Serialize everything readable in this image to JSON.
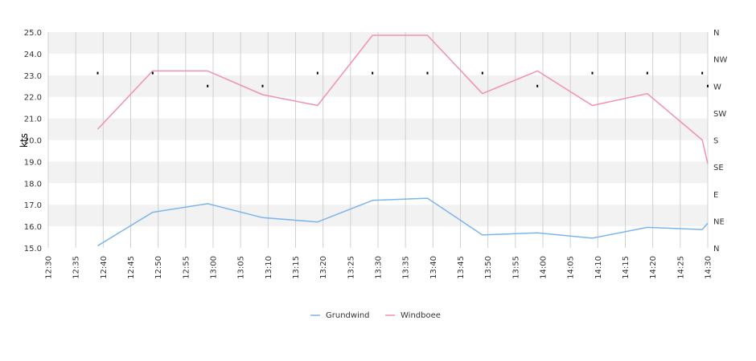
{
  "chart_data": {
    "type": "line",
    "ylabel": "kts",
    "ylim": [
      15,
      25
    ],
    "y_ticks": [
      "15.0",
      "16.0",
      "17.0",
      "18.0",
      "19.0",
      "20.0",
      "21.0",
      "22.0",
      "23.0",
      "24.0",
      "25.0"
    ],
    "x_ticks": [
      "12:30",
      "12:35",
      "12:40",
      "12:45",
      "12:50",
      "12:55",
      "13:00",
      "13:05",
      "13:10",
      "13:15",
      "13:20",
      "13:25",
      "13:30",
      "13:35",
      "13:40",
      "13:45",
      "13:50",
      "13:55",
      "14:00",
      "14:05",
      "14:10",
      "14:15",
      "14:20",
      "14:25",
      "14:30"
    ],
    "y2_ticks": [
      "N",
      "NE",
      "E",
      "SE",
      "S",
      "SW",
      "W",
      "NW",
      "N"
    ],
    "series": [
      {
        "name": "Grundwind",
        "color": "#7cb5ec",
        "points": [
          [
            "12:39",
            15.1
          ],
          [
            "12:49",
            16.65
          ],
          [
            "12:59",
            17.05
          ],
          [
            "13:09",
            16.4
          ],
          [
            "13:19",
            16.2
          ],
          [
            "13:29",
            17.2
          ],
          [
            "13:39",
            17.3
          ],
          [
            "13:49",
            15.6
          ],
          [
            "13:59",
            15.7
          ],
          [
            "14:09",
            15.45
          ],
          [
            "14:19",
            15.95
          ],
          [
            "14:29",
            15.85
          ],
          [
            "14:30",
            16.15
          ]
        ]
      },
      {
        "name": "Windboee",
        "color": "#f28fb8",
        "points": [
          [
            "12:39",
            20.5
          ],
          [
            "12:49",
            23.2
          ],
          [
            "12:59",
            23.2
          ],
          [
            "13:09",
            22.1
          ],
          [
            "13:19",
            21.6
          ],
          [
            "13:29",
            24.85
          ],
          [
            "13:39",
            24.85
          ],
          [
            "13:49",
            22.15
          ],
          [
            "13:59",
            23.2
          ],
          [
            "14:09",
            21.6
          ],
          [
            "14:19",
            22.15
          ],
          [
            "14:29",
            20.0
          ],
          [
            "14:30",
            18.9
          ]
        ]
      }
    ],
    "direction_markers": [
      [
        "12:39",
        23.1
      ],
      [
        "12:49",
        23.1
      ],
      [
        "12:59",
        22.5
      ],
      [
        "13:09",
        22.5
      ],
      [
        "13:19",
        23.1
      ],
      [
        "13:29",
        23.1
      ],
      [
        "13:39",
        23.1
      ],
      [
        "13:49",
        23.1
      ],
      [
        "13:59",
        22.5
      ],
      [
        "14:09",
        23.1
      ],
      [
        "14:19",
        23.1
      ],
      [
        "14:29",
        23.1
      ],
      [
        "14:30",
        22.5
      ]
    ],
    "grid": true,
    "legend": {
      "position": "bottom-center",
      "items": [
        "Grundwind",
        "Windboee"
      ]
    }
  }
}
